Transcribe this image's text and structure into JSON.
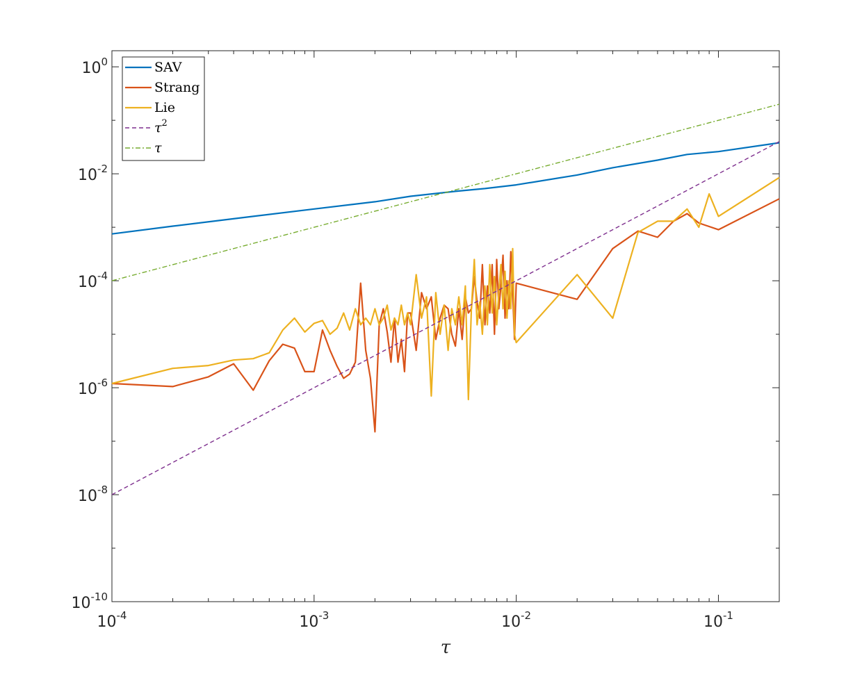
{
  "chart_data": {
    "type": "line",
    "title": "",
    "xlabel": "τ",
    "ylabel": "",
    "x_scale": "log",
    "y_scale": "log",
    "xlim": [
      0.0001,
      0.2
    ],
    "ylim": [
      1e-10,
      2
    ],
    "grid": false,
    "legend_position": "top-left",
    "x_ticks": [
      {
        "value": 0.0001,
        "base": "10",
        "exp": "-4"
      },
      {
        "value": 0.001,
        "base": "10",
        "exp": "-3"
      },
      {
        "value": 0.01,
        "base": "10",
        "exp": "-2"
      },
      {
        "value": 0.1,
        "base": "10",
        "exp": "-1"
      }
    ],
    "y_ticks": [
      {
        "value": 1e-10,
        "base": "10",
        "exp": "-10"
      },
      {
        "value": 1e-08,
        "base": "10",
        "exp": "-8"
      },
      {
        "value": 1e-06,
        "base": "10",
        "exp": "-6"
      },
      {
        "value": 0.0001,
        "base": "10",
        "exp": "-4"
      },
      {
        "value": 0.01,
        "base": "10",
        "exp": "-2"
      },
      {
        "value": 1,
        "base": "10",
        "exp": "0"
      }
    ],
    "series": [
      {
        "name": "SAV",
        "color": "#0072BD",
        "style": "solid",
        "x": [
          0.0001,
          0.0002,
          0.0005,
          0.001,
          0.002,
          0.003,
          0.005,
          0.007,
          0.01,
          0.02,
          0.03,
          0.05,
          0.07,
          0.1,
          0.2
        ],
        "y": [
          0.00075,
          0.00105,
          0.0016,
          0.0022,
          0.003,
          0.0038,
          0.0047,
          0.0053,
          0.0062,
          0.0095,
          0.013,
          0.018,
          0.023,
          0.026,
          0.038
        ]
      },
      {
        "name": "Strang",
        "color": "#D95319",
        "style": "solid",
        "x": [
          0.0001,
          0.0002,
          0.0003,
          0.0004,
          0.0005,
          0.0006,
          0.0007,
          0.0008,
          0.0009,
          0.001,
          0.0011,
          0.0012,
          0.0013,
          0.0014,
          0.0015,
          0.0016,
          0.0017,
          0.0018,
          0.0019,
          0.002,
          0.0021,
          0.0022,
          0.0023,
          0.0024,
          0.0025,
          0.0026,
          0.0027,
          0.0028,
          0.0029,
          0.003,
          0.0032,
          0.0034,
          0.0036,
          0.0038,
          0.004,
          0.0042,
          0.0044,
          0.0046,
          0.0048,
          0.005,
          0.0052,
          0.0054,
          0.0056,
          0.0058,
          0.006,
          0.0062,
          0.0064,
          0.0066,
          0.0068,
          0.007,
          0.0072,
          0.0074,
          0.0076,
          0.0078,
          0.008,
          0.0082,
          0.0084,
          0.0086,
          0.0088,
          0.009,
          0.0092,
          0.0094,
          0.0096,
          0.0098,
          0.01,
          0.02,
          0.03,
          0.04,
          0.05,
          0.06,
          0.07,
          0.08,
          0.1,
          0.2
        ],
        "y": [
          1.2e-06,
          1.05e-06,
          1.6e-06,
          2.8e-06,
          9e-07,
          3.2e-06,
          6.5e-06,
          5.5e-06,
          2e-06,
          2e-06,
          1.2e-05,
          5e-06,
          2.5e-06,
          1.5e-06,
          1.8e-06,
          3e-06,
          9e-05,
          5e-06,
          1.5e-06,
          1.5e-07,
          1.5e-05,
          3e-05,
          1.1e-05,
          3e-06,
          2e-05,
          3e-06,
          8e-06,
          2e-06,
          2.5e-05,
          2.5e-05,
          5e-06,
          6e-05,
          3e-05,
          5e-05,
          8e-06,
          2e-05,
          3.5e-05,
          3e-05,
          1e-05,
          6e-06,
          3e-05,
          8e-06,
          5e-05,
          2.5e-05,
          3e-05,
          0.00012,
          4e-05,
          2e-05,
          0.0002,
          1.5e-05,
          8e-05,
          2.5e-05,
          0.0002,
          1e-05,
          0.00025,
          3e-05,
          8e-05,
          0.0003,
          2e-05,
          0.0001,
          3e-05,
          0.00035,
          6e-05,
          8e-06,
          9e-05,
          4.5e-05,
          0.0004,
          0.00085,
          0.00065,
          0.0013,
          0.0018,
          0.0012,
          0.0009,
          0.0034
        ]
      },
      {
        "name": "Lie",
        "color": "#EDB120",
        "style": "solid",
        "x": [
          0.0001,
          0.0002,
          0.0003,
          0.0004,
          0.0005,
          0.0006,
          0.0007,
          0.0008,
          0.0009,
          0.001,
          0.0011,
          0.0012,
          0.0013,
          0.0014,
          0.0015,
          0.0016,
          0.0017,
          0.0018,
          0.0019,
          0.002,
          0.0021,
          0.0022,
          0.0023,
          0.0024,
          0.0025,
          0.0026,
          0.0027,
          0.0028,
          0.0029,
          0.003,
          0.0032,
          0.0034,
          0.0036,
          0.0038,
          0.004,
          0.0042,
          0.0044,
          0.0046,
          0.0048,
          0.005,
          0.0052,
          0.0054,
          0.0056,
          0.0058,
          0.006,
          0.0062,
          0.0064,
          0.0066,
          0.0068,
          0.007,
          0.0072,
          0.0074,
          0.0076,
          0.0078,
          0.008,
          0.0082,
          0.0084,
          0.0086,
          0.0088,
          0.009,
          0.0092,
          0.0094,
          0.0096,
          0.0098,
          0.01,
          0.02,
          0.03,
          0.04,
          0.05,
          0.06,
          0.07,
          0.08,
          0.09,
          0.1,
          0.2
        ],
        "y": [
          1.2e-06,
          2.3e-06,
          2.6e-06,
          3.3e-06,
          3.5e-06,
          4.5e-06,
          1.2e-05,
          2e-05,
          1.1e-05,
          1.6e-05,
          1.8e-05,
          1e-05,
          1.3e-05,
          2.5e-05,
          1.2e-05,
          3e-05,
          1.5e-05,
          2e-05,
          1.5e-05,
          3e-05,
          1.5e-05,
          2e-05,
          3.5e-05,
          1.2e-05,
          2e-05,
          1.5e-05,
          3.5e-05,
          1.5e-05,
          2.5e-05,
          1.5e-05,
          0.00013,
          2e-05,
          5e-05,
          7e-07,
          6e-05,
          1e-05,
          3.5e-05,
          5e-06,
          3e-05,
          1.5e-05,
          5e-05,
          1.5e-05,
          8e-05,
          6e-07,
          3e-05,
          0.00025,
          1.5e-05,
          4e-05,
          1e-05,
          8e-05,
          1.5e-05,
          0.0002,
          2.5e-05,
          0.00012,
          1.5e-05,
          6e-05,
          0.0002,
          3e-05,
          0.00015,
          2e-05,
          0.0001,
          3e-05,
          0.0004,
          1e-05,
          7e-06,
          0.00013,
          2e-05,
          0.0008,
          0.0013,
          0.0013,
          0.0022,
          0.001,
          0.0042,
          0.0016,
          0.0085
        ]
      },
      {
        "name": "τ²",
        "color": "#7E2F8E",
        "style": "dashed",
        "x": [
          0.0001,
          0.2
        ],
        "y": [
          1e-08,
          0.04
        ]
      },
      {
        "name": "τ",
        "color": "#77AC30",
        "style": "dashdot",
        "x": [
          0.0001,
          0.2
        ],
        "y": [
          0.0001,
          0.2
        ]
      }
    ],
    "legend": [
      {
        "label": "SAV",
        "series": 0
      },
      {
        "label": "Strang",
        "series": 1
      },
      {
        "label": "Lie",
        "series": 2
      },
      {
        "label_base": "τ",
        "label_exp": "2",
        "series": 3
      },
      {
        "label_base": "τ",
        "series": 4
      }
    ]
  }
}
